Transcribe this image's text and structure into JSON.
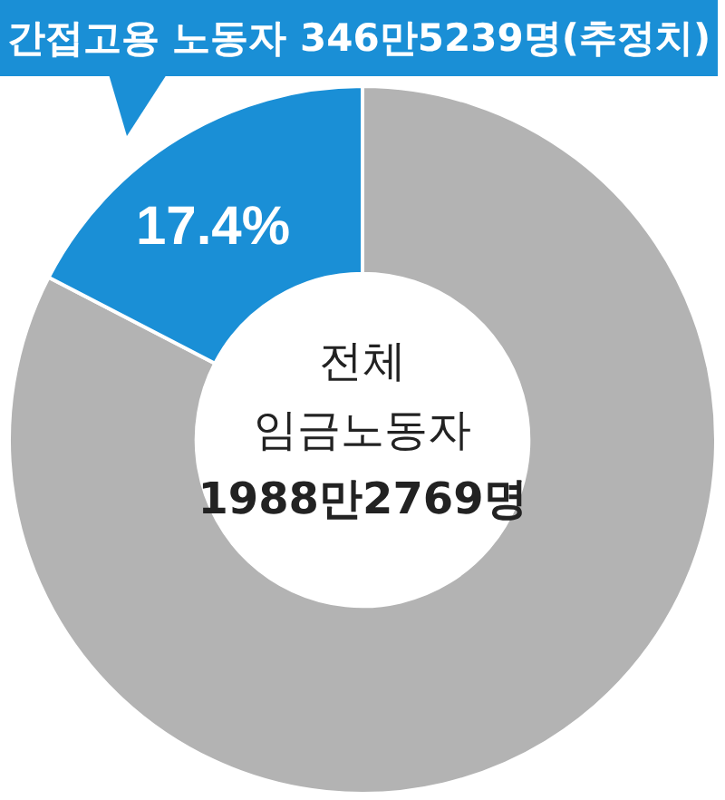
{
  "chart_data": {
    "type": "donut",
    "title": "간접고용 노동자 346만5239명(추정치)",
    "categories": [
      null,
      null
    ],
    "values": [
      82.6,
      17.4
    ],
    "colors": [
      "#b3b3b3",
      "#1a8fd6"
    ],
    "value_labels": [
      null,
      "17.4%"
    ],
    "annotations": [
      "전체",
      "임금노동자",
      "1988만2769명"
    ],
    "legend": false
  }
}
